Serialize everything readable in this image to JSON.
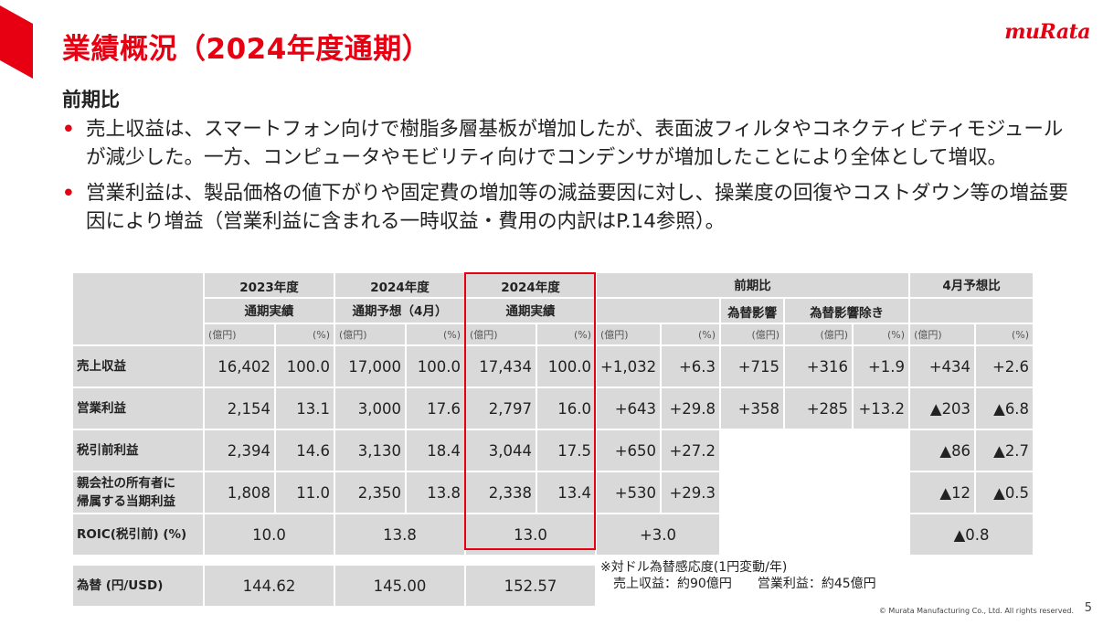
{
  "header": {
    "title": "業績概況（2024年度通期）",
    "logo_text": "muRata",
    "subtitle": "前期比",
    "accent_color": "#e60012"
  },
  "bullets": [
    "売上収益は、スマートフォン向けで樹脂多層基板が増加したが、表面波フィルタやコネクティビティモジュールが減少した。一方、コンピュータやモビリティ向けでコンデンサが増加したことにより全体として増収。",
    "営業利益は、製品価格の値下がりや固定費の増加等の減益要因に対し、操業度の回復やコストダウン等の増益要因により増益（営業利益に含まれる一時収益・費用の内訳はP.14参照）。"
  ],
  "table": {
    "headers": {
      "fy2023_line1": "2023年度",
      "fy2023_line2": "通期実績",
      "fy2024f_line1": "2024年度",
      "fy2024f_line2": "通期予想（4月）",
      "fy2024_line1": "2024年度",
      "fy2024_line2": "通期実績",
      "yoy": "前期比",
      "fx_impact": "為替影響",
      "ex_fx": "為替影響除き",
      "vs_forecast": "4月予想比",
      "unit_oku": "(億円)",
      "unit_pct": "(%)"
    },
    "rows": [
      {
        "label": "売上収益",
        "v": [
          "16,402",
          "100.0",
          "17,000",
          "100.0",
          "17,434",
          "100.0",
          "+1,032",
          "+6.3",
          "+715",
          "+316",
          "+1.9",
          "+434",
          "+2.6"
        ]
      },
      {
        "label": "営業利益",
        "v": [
          "2,154",
          "13.1",
          "3,000",
          "17.6",
          "2,797",
          "16.0",
          "+643",
          "+29.8",
          "+358",
          "+285",
          "+13.2",
          "▲203",
          "▲6.8"
        ]
      },
      {
        "label": "税引前利益",
        "v": [
          "2,394",
          "14.6",
          "3,130",
          "18.4",
          "3,044",
          "17.5",
          "+650",
          "+27.2",
          "▲86",
          "▲2.7"
        ]
      },
      {
        "label_line1": "親会社の所有者に",
        "label_line2": "帰属する当期利益",
        "v": [
          "1,808",
          "11.0",
          "2,350",
          "13.8",
          "2,338",
          "13.4",
          "+530",
          "+29.3",
          "▲12",
          "▲0.5"
        ]
      },
      {
        "label": "ROIC(税引前) (%)",
        "v": [
          "10.0",
          "13.8",
          "13.0",
          "+3.0",
          "▲0.8"
        ]
      }
    ],
    "fx_row": {
      "label": "為替 (円/USD)",
      "v": [
        "144.62",
        "145.00",
        "152.57"
      ]
    }
  },
  "note": {
    "line1": "※対ドル為替感応度(1円変動/年)",
    "line2a": "売上収益：約90億円",
    "line2b": "営業利益：約45億円"
  },
  "footer": {
    "copyright": "© Murata Manufacturing Co., Ltd. All rights reserved.",
    "page": "5"
  }
}
